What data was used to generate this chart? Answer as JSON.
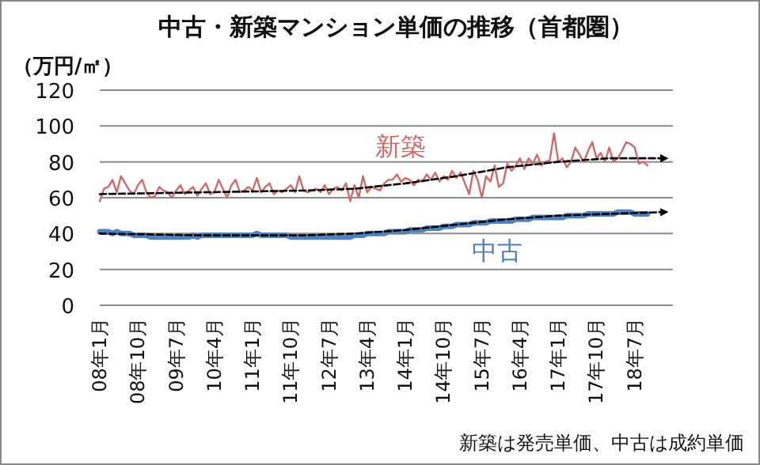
{
  "chart_data": {
    "type": "line",
    "title": "中古・新築マンション単価の推移（首都圏）",
    "ylabel": "（万円/㎡）",
    "annotations": [
      "新築は発売単価、中古は成約単価"
    ],
    "x": [
      "2008-01",
      "2008-02",
      "2008-03",
      "2008-04",
      "2008-05",
      "2008-06",
      "2008-07",
      "2008-08",
      "2008-09",
      "2008-10",
      "2008-11",
      "2008-12",
      "2009-01",
      "2009-02",
      "2009-03",
      "2009-04",
      "2009-05",
      "2009-06",
      "2009-07",
      "2009-08",
      "2009-09",
      "2009-10",
      "2009-11",
      "2009-12",
      "2010-01",
      "2010-02",
      "2010-03",
      "2010-04",
      "2010-05",
      "2010-06",
      "2010-07",
      "2010-08",
      "2010-09",
      "2010-10",
      "2010-11",
      "2010-12",
      "2011-01",
      "2011-02",
      "2011-03",
      "2011-04",
      "2011-05",
      "2011-06",
      "2011-07",
      "2011-08",
      "2011-09",
      "2011-10",
      "2011-11",
      "2011-12",
      "2012-01",
      "2012-02",
      "2012-03",
      "2012-04",
      "2012-05",
      "2012-06",
      "2012-07",
      "2012-08",
      "2012-09",
      "2012-10",
      "2012-11",
      "2012-12",
      "2013-01",
      "2013-02",
      "2013-03",
      "2013-04",
      "2013-05",
      "2013-06",
      "2013-07",
      "2013-08",
      "2013-09",
      "2013-10",
      "2013-11",
      "2013-12",
      "2014-01",
      "2014-02",
      "2014-03",
      "2014-04",
      "2014-05",
      "2014-06",
      "2014-07",
      "2014-08",
      "2014-09",
      "2014-10",
      "2014-11",
      "2014-12",
      "2015-01",
      "2015-02",
      "2015-03",
      "2015-04",
      "2015-05",
      "2015-06",
      "2015-07",
      "2015-08",
      "2015-09",
      "2015-10",
      "2015-11",
      "2015-12",
      "2016-01",
      "2016-02",
      "2016-03",
      "2016-04",
      "2016-05",
      "2016-06",
      "2016-07",
      "2016-08",
      "2016-09",
      "2016-10",
      "2016-11",
      "2016-12",
      "2017-01",
      "2017-02",
      "2017-03",
      "2017-04",
      "2017-05",
      "2017-06",
      "2017-07",
      "2017-08",
      "2017-09",
      "2017-10",
      "2017-11",
      "2017-12",
      "2018-01",
      "2018-02",
      "2018-03",
      "2018-04",
      "2018-05",
      "2018-06",
      "2018-07",
      "2018-08",
      "2018-09",
      "2018-10"
    ],
    "series": [
      {
        "name": "新築",
        "color": "#d06a6a",
        "values": [
          58,
          65,
          66,
          70,
          63,
          72,
          68,
          64,
          62,
          67,
          70,
          63,
          60,
          61,
          66,
          64,
          63,
          60,
          64,
          67,
          62,
          64,
          66,
          61,
          65,
          68,
          62,
          63,
          70,
          65,
          60,
          67,
          70,
          63,
          64,
          66,
          64,
          71,
          63,
          66,
          68,
          62,
          64,
          63,
          65,
          67,
          63,
          72,
          64,
          63,
          64,
          65,
          63,
          67,
          62,
          65,
          66,
          64,
          68,
          58,
          67,
          60,
          72,
          63,
          66,
          65,
          64,
          68,
          70,
          70,
          73,
          69,
          71,
          70,
          67,
          70,
          69,
          73,
          70,
          74,
          69,
          72,
          70,
          75,
          71,
          74,
          68,
          62,
          75,
          70,
          60,
          72,
          69,
          78,
          66,
          68,
          79,
          75,
          78,
          82,
          76,
          82,
          79,
          84,
          78,
          80,
          81,
          96,
          80,
          82,
          77,
          80,
          88,
          84,
          80,
          86,
          91,
          82,
          85,
          80,
          88,
          80,
          82,
          86,
          91,
          90,
          88,
          79,
          80,
          78
        ]
      },
      {
        "name": "中古",
        "color": "#4f81bd",
        "values": [
          41,
          41,
          41,
          40,
          41,
          40,
          40,
          40,
          39,
          39,
          39,
          39,
          38,
          38,
          38,
          38,
          38,
          38,
          38,
          38,
          38,
          38,
          39,
          38,
          39,
          39,
          39,
          39,
          39,
          39,
          39,
          39,
          39,
          39,
          39,
          39,
          39,
          40,
          39,
          39,
          39,
          39,
          39,
          39,
          39,
          38,
          38,
          38,
          38,
          38,
          38,
          38,
          38,
          38,
          38,
          38,
          38,
          38,
          38,
          38,
          39,
          39,
          39,
          40,
          40,
          40,
          40,
          40,
          41,
          41,
          41,
          41,
          41,
          42,
          42,
          42,
          42,
          43,
          43,
          43,
          43,
          44,
          44,
          44,
          45,
          45,
          45,
          45,
          46,
          46,
          46,
          46,
          47,
          47,
          47,
          47,
          47,
          47,
          48,
          48,
          48,
          48,
          49,
          49,
          49,
          49,
          49,
          49,
          49,
          49,
          50,
          50,
          50,
          50,
          50,
          51,
          51,
          51,
          51,
          51,
          51,
          51,
          52,
          52,
          52,
          52,
          51,
          51,
          51,
          51
        ]
      },
      {
        "type": "line",
        "color": "#000000",
        "line_style": "dashed",
        "x": [
          "2008-01",
          "2010-01",
          "2012-01",
          "2013-01",
          "2014-01",
          "2015-01",
          "2016-01",
          "2017-01",
          "2018-01",
          "2019-02"
        ],
        "values": [
          62,
          63,
          64,
          65,
          68,
          72,
          77,
          80,
          82,
          82
        ]
      },
      {
        "type": "line",
        "color": "#000000",
        "line_style": "dashed",
        "x": [
          "2008-01",
          "2010-01",
          "2012-01",
          "2013-01",
          "2014-01",
          "2015-01",
          "2016-01",
          "2017-01",
          "2018-01",
          "2019-02"
        ],
        "values": [
          40,
          39,
          39,
          40,
          42,
          45,
          48,
          50,
          51,
          52
        ]
      }
    ],
    "xlim": [
      "2008-01",
      "2019-04"
    ],
    "xticks": [
      {
        "value": "2008-01",
        "label": "08年1月"
      },
      {
        "value": "2008-10",
        "label": "08年10月"
      },
      {
        "value": "2009-07",
        "label": "09年7月"
      },
      {
        "value": "2010-04",
        "label": "10年4月"
      },
      {
        "value": "2011-01",
        "label": "11年1月"
      },
      {
        "value": "2011-10",
        "label": "11年10月"
      },
      {
        "value": "2012-07",
        "label": "12年7月"
      },
      {
        "value": "2013-04",
        "label": "13年4月"
      },
      {
        "value": "2014-01",
        "label": "14年1月"
      },
      {
        "value": "2014-10",
        "label": "14年10月"
      },
      {
        "value": "2015-07",
        "label": "15年7月"
      },
      {
        "value": "2016-04",
        "label": "16年4月"
      },
      {
        "value": "2017-01",
        "label": "17年1月"
      },
      {
        "value": "2017-10",
        "label": "17年10月"
      },
      {
        "value": "2018-07",
        "label": "18年7月"
      }
    ],
    "ylim": [
      0,
      120
    ],
    "yticks": [
      0,
      20,
      40,
      60,
      80,
      100,
      120
    ],
    "grid": "y"
  }
}
